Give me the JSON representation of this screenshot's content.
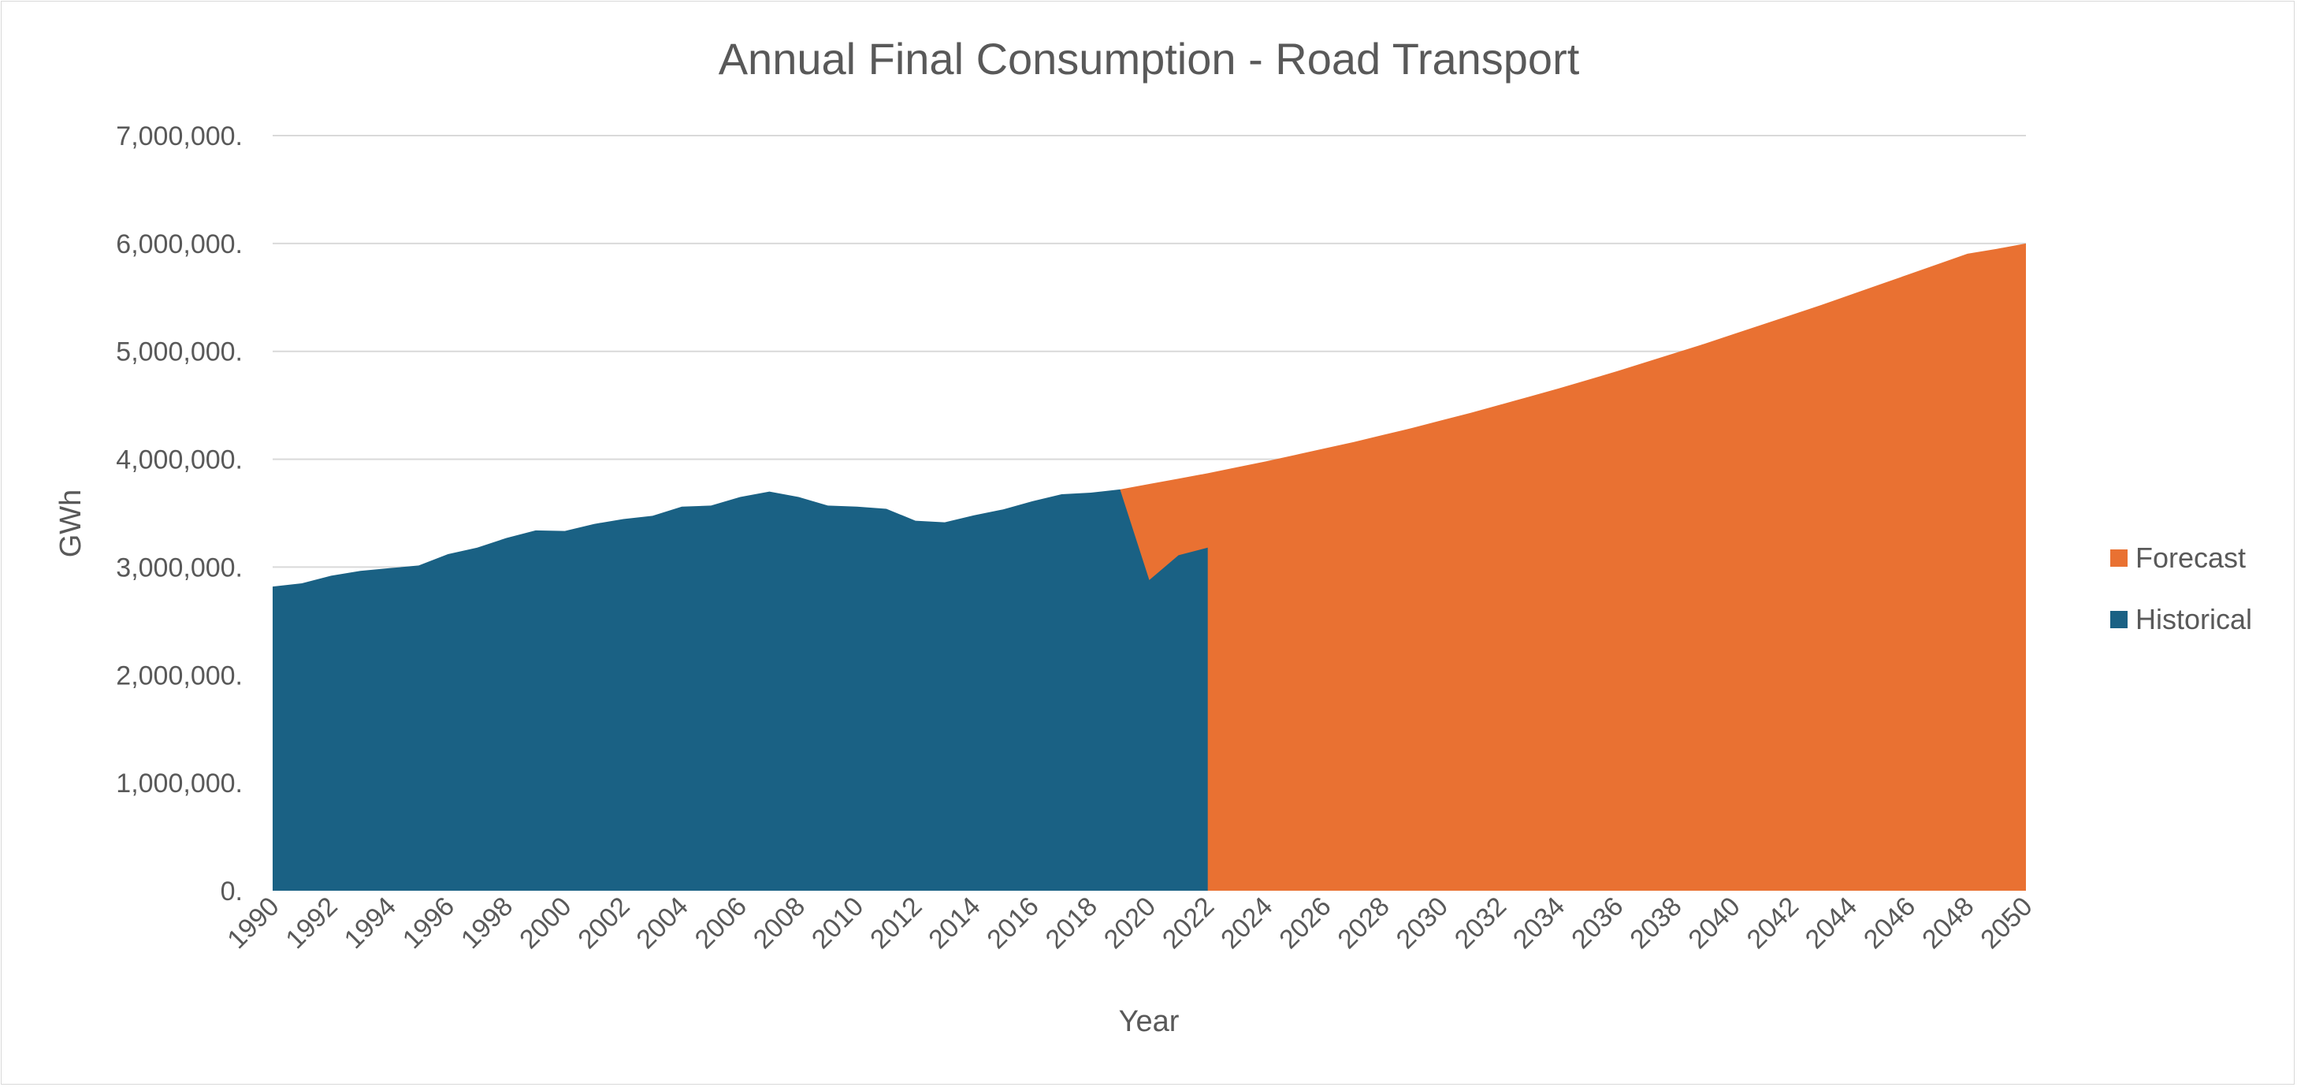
{
  "chart_data": {
    "type": "area",
    "title": "Annual Final Consumption - Road Transport",
    "xlabel": "Year",
    "ylabel": "GWh",
    "ylim": [
      0,
      7000000
    ],
    "yticks": [
      0,
      1000000,
      2000000,
      3000000,
      4000000,
      5000000,
      6000000,
      7000000
    ],
    "ytick_labels": [
      "0.",
      "1,000,000.",
      "2,000,000.",
      "3,000,000.",
      "4,000,000.",
      "5,000,000.",
      "6,000,000.",
      "7,000,000."
    ],
    "x_range": [
      1990,
      2050
    ],
    "xtick_labels": [
      "1990",
      "1992",
      "1994",
      "1996",
      "1998",
      "2000",
      "2002",
      "2004",
      "2006",
      "2008",
      "2010",
      "2012",
      "2014",
      "2016",
      "2018",
      "2020",
      "2022",
      "2024",
      "2026",
      "2028",
      "2030",
      "2032",
      "2034",
      "2036",
      "2038",
      "2040",
      "2042",
      "2044",
      "2046",
      "2048",
      "2050"
    ],
    "grid": true,
    "legend_position": "right",
    "legend": [
      "Forecast",
      "Historical"
    ],
    "series": [
      {
        "name": "Historical",
        "color": "#1a6184",
        "x": [
          1990,
          1991,
          1992,
          1993,
          1994,
          1995,
          1996,
          1997,
          1998,
          1999,
          2000,
          2001,
          2002,
          2003,
          2004,
          2005,
          2006,
          2007,
          2008,
          2009,
          2010,
          2011,
          2012,
          2013,
          2014,
          2015,
          2016,
          2017,
          2018,
          2019,
          2020,
          2021,
          2022
        ],
        "y": [
          2820000,
          2850000,
          2920000,
          2965000,
          2990000,
          3015000,
          3120000,
          3180000,
          3270000,
          3340000,
          3335000,
          3400000,
          3445000,
          3475000,
          3560000,
          3570000,
          3650000,
          3700000,
          3650000,
          3570000,
          3560000,
          3540000,
          3430000,
          3415000,
          3480000,
          3535000,
          3610000,
          3675000,
          3690000,
          3720000,
          2880000,
          3110000,
          3180000
        ]
      },
      {
        "name": "Forecast",
        "color": "#e97132",
        "x": [
          2019,
          2020,
          2021,
          2022,
          2023,
          2024,
          2025,
          2026,
          2027,
          2028,
          2029,
          2030,
          2031,
          2032,
          2033,
          2034,
          2035,
          2036,
          2037,
          2038,
          2039,
          2040,
          2041,
          2042,
          2043,
          2044,
          2045,
          2046,
          2047,
          2048,
          2049,
          2050
        ],
        "y": [
          3720000,
          3770000,
          3820000,
          3870000,
          3925000,
          3980000,
          4040000,
          4100000,
          4160000,
          4225000,
          4290000,
          4360000,
          4430000,
          4505000,
          4580000,
          4655000,
          4735000,
          4815000,
          4900000,
          4985000,
          5070000,
          5160000,
          5250000,
          5340000,
          5430000,
          5525000,
          5620000,
          5715000,
          5810000,
          5905000,
          5950000,
          6000000
        ]
      }
    ]
  }
}
